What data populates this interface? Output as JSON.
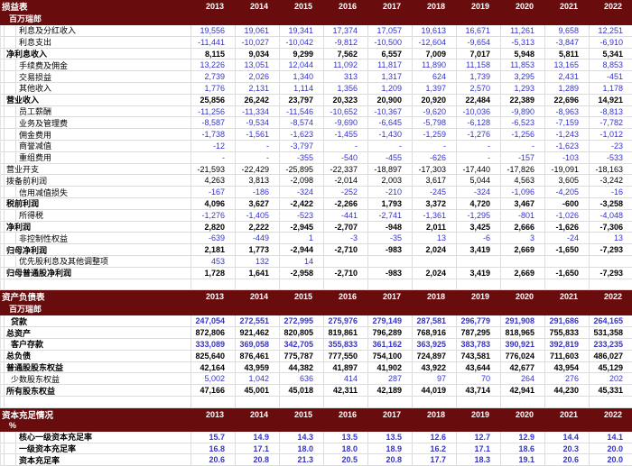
{
  "colors": {
    "header_bg": "#680c0e",
    "header_text": "#ffffff",
    "value_blue": "#3333cc",
    "value_black": "#000000",
    "gridline": "#dcdcdc"
  },
  "years": [
    "2013",
    "2014",
    "2015",
    "2016",
    "2017",
    "2018",
    "2019",
    "2020",
    "2021",
    "2022"
  ],
  "sections": [
    {
      "id": "income-statement",
      "title": "损益表",
      "subtitle": "百万瑞郎",
      "rows": [
        {
          "label": "利息及分红收入",
          "style": "sub",
          "values": [
            "19,556",
            "19,061",
            "19,341",
            "17,374",
            "17,057",
            "19,613",
            "16,671",
            "11,261",
            "9,658",
            "12,251"
          ]
        },
        {
          "label": "利息支出",
          "style": "sub",
          "values": [
            "-11,441",
            "-10,027",
            "-10,042",
            "-9,812",
            "-10,500",
            "-12,604",
            "-9,654",
            "-5,313",
            "-3,847",
            "-6,910"
          ]
        },
        {
          "label": "净利息收入",
          "style": "total",
          "values": [
            "8,115",
            "9,034",
            "9,299",
            "7,562",
            "6,557",
            "7,009",
            "7,017",
            "5,948",
            "5,811",
            "5,341"
          ]
        },
        {
          "label": "手续费及佣金",
          "style": "sub",
          "values": [
            "13,226",
            "13,051",
            "12,044",
            "11,092",
            "11,817",
            "11,890",
            "11,158",
            "11,853",
            "13,165",
            "8,853"
          ]
        },
        {
          "label": "交易损益",
          "style": "sub",
          "values": [
            "2,739",
            "2,026",
            "1,340",
            "313",
            "1,317",
            "624",
            "1,739",
            "3,295",
            "2,431",
            "-451"
          ]
        },
        {
          "label": "其他收入",
          "style": "sub",
          "values": [
            "1,776",
            "2,131",
            "1,114",
            "1,356",
            "1,209",
            "1,397",
            "2,570",
            "1,293",
            "1,289",
            "1,178"
          ]
        },
        {
          "label": "营业收入",
          "style": "total",
          "values": [
            "25,856",
            "26,242",
            "23,797",
            "20,323",
            "20,900",
            "20,920",
            "22,484",
            "22,389",
            "22,696",
            "14,921"
          ]
        },
        {
          "label": "员工薪酬",
          "style": "sub",
          "values": [
            "-11,256",
            "-11,334",
            "-11,546",
            "-10,652",
            "-10,367",
            "-9,620",
            "-10,036",
            "-9,890",
            "-8,963",
            "-8,813"
          ]
        },
        {
          "label": "业务及管理费",
          "style": "sub",
          "values": [
            "-8,587",
            "-9,534",
            "-8,574",
            "-9,690",
            "-6,645",
            "-5,798",
            "-6,128",
            "-6,523",
            "-7,159",
            "-7,782"
          ]
        },
        {
          "label": "佣金费用",
          "style": "sub",
          "values": [
            "-1,738",
            "-1,561",
            "-1,623",
            "-1,455",
            "-1,430",
            "-1,259",
            "-1,276",
            "-1,256",
            "-1,243",
            "-1,012"
          ]
        },
        {
          "label": "商誉减值",
          "style": "sub",
          "values": [
            "-12",
            "-",
            "-3,797",
            "-",
            "-",
            "-",
            "-",
            "-",
            "-1,623",
            "-23"
          ]
        },
        {
          "label": "重组费用",
          "style": "sub",
          "values": [
            "-",
            "-",
            "-355",
            "-540",
            "-455",
            "-626",
            "-",
            "-157",
            "-103",
            "-533"
          ]
        },
        {
          "label": "营业开支",
          "style": "plain",
          "values": [
            "-21,593",
            "-22,429",
            "-25,895",
            "-22,337",
            "-18,897",
            "-17,303",
            "-17,440",
            "-17,826",
            "-19,091",
            "-18,163"
          ]
        },
        {
          "label": "拨备前利润",
          "style": "plain",
          "values": [
            "4,263",
            "3,813",
            "-2,098",
            "-2,014",
            "2,003",
            "3,617",
            "5,044",
            "4,563",
            "3,605",
            "-3,242"
          ]
        },
        {
          "label": "信用减值损失",
          "style": "sub",
          "values": [
            "-167",
            "-186",
            "-324",
            "-252",
            "-210",
            "-245",
            "-324",
            "-1,096",
            "-4,205",
            "-16"
          ]
        },
        {
          "label": "税前利润",
          "style": "total",
          "values": [
            "4,096",
            "3,627",
            "-2,422",
            "-2,266",
            "1,793",
            "3,372",
            "4,720",
            "3,467",
            "-600",
            "-3,258"
          ]
        },
        {
          "label": "所得税",
          "style": "sub",
          "values": [
            "-1,276",
            "-1,405",
            "-523",
            "-441",
            "-2,741",
            "-1,361",
            "-1,295",
            "-801",
            "-1,026",
            "-4,048"
          ]
        },
        {
          "label": "净利润",
          "style": "total",
          "values": [
            "2,820",
            "2,222",
            "-2,945",
            "-2,707",
            "-948",
            "2,011",
            "3,425",
            "2,666",
            "-1,626",
            "-7,306"
          ]
        },
        {
          "label": "非控制性权益",
          "style": "sub",
          "values": [
            "-639",
            "-449",
            "1",
            "-3",
            "-35",
            "13",
            "-6",
            "3",
            "-24",
            "13"
          ]
        },
        {
          "label": "归母净利润",
          "style": "total",
          "values": [
            "2,181",
            "1,773",
            "-2,944",
            "-2,710",
            "-983",
            "2,024",
            "3,419",
            "2,669",
            "-1,650",
            "-7,293"
          ]
        },
        {
          "label": "优先股利息及其他调整项",
          "style": "sub",
          "values": [
            "453",
            "132",
            "14",
            "",
            "",
            "",
            "",
            "",
            "",
            ""
          ]
        },
        {
          "label": "归母普通股净利润",
          "style": "total",
          "values": [
            "1,728",
            "1,641",
            "-2,958",
            "-2,710",
            "-983",
            "2,024",
            "3,419",
            "2,669",
            "-1,650",
            "-7,293"
          ]
        },
        {
          "label": "",
          "style": "empty",
          "values": [
            "",
            "",
            "",
            "",
            "",
            "",
            "",
            "",
            "",
            ""
          ]
        }
      ]
    },
    {
      "id": "balance-sheet",
      "title": "资产负债表",
      "subtitle": "百万瑞郎",
      "rows": [
        {
          "label": "贷款",
          "style": "bsubbold",
          "values": [
            "247,054",
            "272,551",
            "272,995",
            "275,976",
            "279,149",
            "287,581",
            "296,779",
            "291,908",
            "291,686",
            "264,165"
          ]
        },
        {
          "label": "总资产",
          "style": "total",
          "values": [
            "872,806",
            "921,462",
            "820,805",
            "819,861",
            "796,289",
            "768,916",
            "787,295",
            "818,965",
            "755,833",
            "531,358"
          ]
        },
        {
          "label": "客户存款",
          "style": "bsubbold",
          "values": [
            "333,089",
            "369,058",
            "342,705",
            "355,833",
            "361,162",
            "363,925",
            "383,783",
            "390,921",
            "392,819",
            "233,235"
          ]
        },
        {
          "label": "总负债",
          "style": "total",
          "values": [
            "825,640",
            "876,461",
            "775,787",
            "777,550",
            "754,100",
            "724,897",
            "743,581",
            "776,024",
            "711,603",
            "486,027"
          ]
        },
        {
          "label": "普通股股东权益",
          "style": "total",
          "values": [
            "42,164",
            "43,959",
            "44,382",
            "41,897",
            "41,902",
            "43,922",
            "43,644",
            "42,677",
            "43,954",
            "45,129"
          ]
        },
        {
          "label": "少数股东权益",
          "style": "bsub",
          "values": [
            "5,002",
            "1,042",
            "636",
            "414",
            "287",
            "97",
            "70",
            "264",
            "276",
            "202"
          ]
        },
        {
          "label": "所有股东权益",
          "style": "total",
          "values": [
            "47,166",
            "45,001",
            "45,018",
            "42,311",
            "42,189",
            "44,019",
            "43,714",
            "42,941",
            "44,230",
            "45,331"
          ]
        },
        {
          "label": "",
          "style": "empty",
          "values": [
            "",
            "",
            "",
            "",
            "",
            "",
            "",
            "",
            "",
            ""
          ]
        }
      ]
    },
    {
      "id": "capital-adequacy",
      "title": "资本充足情况",
      "subtitle": "%",
      "rows": [
        {
          "label": "核心一级资本充足率",
          "style": "cap",
          "values": [
            "15.7",
            "14.9",
            "14.3",
            "13.5",
            "13.5",
            "12.6",
            "12.7",
            "12.9",
            "14.4",
            "14.1"
          ]
        },
        {
          "label": "一级资本充足率",
          "style": "cap",
          "values": [
            "16.8",
            "17.1",
            "18.0",
            "18.0",
            "18.9",
            "16.2",
            "17.1",
            "18.6",
            "20.3",
            "20.0"
          ]
        },
        {
          "label": "资本充足率",
          "style": "cap",
          "values": [
            "20.6",
            "20.8",
            "21.3",
            "20.5",
            "20.8",
            "17.7",
            "18.3",
            "19.1",
            "20.6",
            "20.0"
          ]
        }
      ]
    }
  ]
}
